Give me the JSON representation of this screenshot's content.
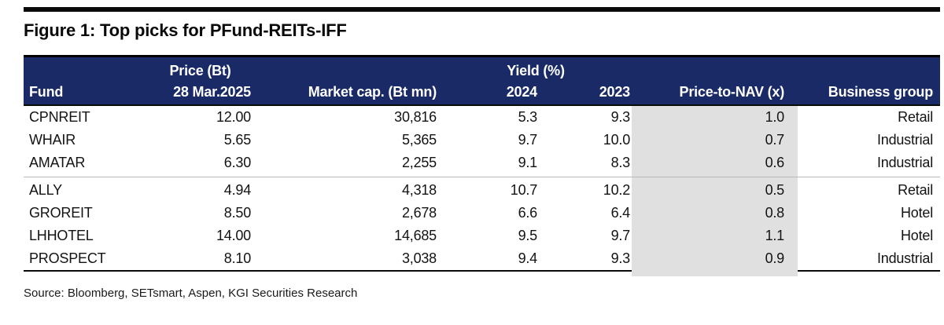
{
  "figure": {
    "title": "Figure 1: Top picks for PFund-REITs-IFF",
    "source": "Source: Bloomberg, SETsmart, Aspen, KGI Securities Research"
  },
  "table": {
    "group_headers": [
      "Price (Bt)",
      "Yield (%)"
    ],
    "columns": [
      "Fund",
      "28 Mar.2025",
      "Market cap. (Bt mn)",
      "2024",
      "2023",
      "Price-to-NAV (x)",
      "Business group"
    ],
    "column_keys": [
      "fund",
      "price-28-mar-2025",
      "market-cap-bt-mn",
      "yield-2024",
      "yield-2023",
      "price-to-nav",
      "business-group"
    ],
    "rows": [
      [
        "CPNREIT",
        "12.00",
        "30,816",
        "5.3",
        "9.3",
        "1.0",
        "Retail"
      ],
      [
        "WHAIR",
        "5.65",
        "5,365",
        "9.7",
        "10.0",
        "0.7",
        "Industrial"
      ],
      [
        "AMATAR",
        "6.30",
        "2,255",
        "9.1",
        "8.3",
        "0.6",
        "Industrial"
      ],
      [
        "ALLY",
        "4.94",
        "4,318",
        "10.7",
        "10.2",
        "0.5",
        "Retail"
      ],
      [
        "GROREIT",
        "8.50",
        "2,678",
        "6.6",
        "6.4",
        "0.8",
        "Hotel"
      ],
      [
        "LHHOTEL",
        "14.00",
        "14,685",
        "9.5",
        "9.7",
        "1.1",
        "Hotel"
      ],
      [
        "PROSPECT",
        "8.10",
        "3,038",
        "9.4",
        "9.3",
        "0.9",
        "Industrial"
      ]
    ],
    "group_break_before_row": 3
  },
  "colors": {
    "header_bg": "#1a2a66",
    "highlight_col_bg": "#e0e0e0"
  },
  "chart_data": {
    "type": "table",
    "title": "Figure 1: Top picks for PFund-REITs-IFF",
    "columns": [
      "Fund",
      "Price (Bt) 28 Mar.2025",
      "Market cap. (Bt mn)",
      "Yield (%) 2024",
      "Yield (%) 2023",
      "Price-to-NAV (x)",
      "Business group"
    ],
    "rows": [
      [
        "CPNREIT",
        12.0,
        30816,
        5.3,
        9.3,
        1.0,
        "Retail"
      ],
      [
        "WHAIR",
        5.65,
        5365,
        9.7,
        10.0,
        0.7,
        "Industrial"
      ],
      [
        "AMATAR",
        6.3,
        2255,
        9.1,
        8.3,
        0.6,
        "Industrial"
      ],
      [
        "ALLY",
        4.94,
        4318,
        10.7,
        10.2,
        0.5,
        "Retail"
      ],
      [
        "GROREIT",
        8.5,
        2678,
        6.6,
        6.4,
        0.8,
        "Hotel"
      ],
      [
        "LHHOTEL",
        14.0,
        14685,
        9.5,
        9.7,
        1.1,
        "Hotel"
      ],
      [
        "PROSPECT",
        8.1,
        3038,
        9.4,
        9.3,
        0.9,
        "Industrial"
      ]
    ]
  }
}
